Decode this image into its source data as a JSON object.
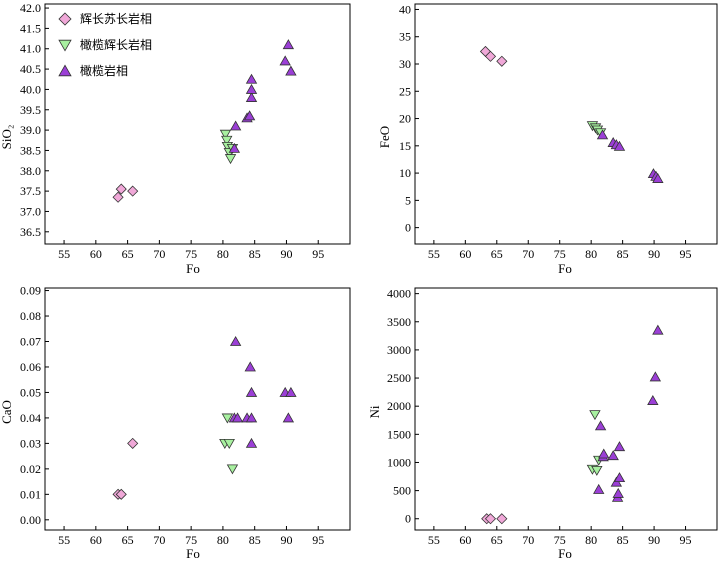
{
  "legend": [
    {
      "key": "gabbronorite",
      "label": "辉长苏长岩相",
      "marker": "diamond",
      "color": "#f0a8d8"
    },
    {
      "key": "olivine_gabbro",
      "label": "橄榄辉长岩相",
      "marker": "triangle-down",
      "color": "#a8f0a0"
    },
    {
      "key": "olivine_rock",
      "label": "橄榄岩相",
      "marker": "triangle-up",
      "color": "#9b3fd6"
    }
  ],
  "chart_data": [
    {
      "id": "sio2",
      "type": "scatter",
      "xlabel": "Fo",
      "ylabel": "SiO₂",
      "xlim": [
        52,
        100
      ],
      "ylim": [
        36.2,
        42.1
      ],
      "xticks": [
        55,
        60,
        65,
        70,
        75,
        80,
        85,
        90,
        95
      ],
      "yticks": [
        36.5,
        37.0,
        37.5,
        38.0,
        38.5,
        39.0,
        39.5,
        40.0,
        40.5,
        41.0,
        41.5,
        42.0
      ],
      "ytick_labels": [
        "36.5",
        "37.0",
        "37.5",
        "38.0",
        "38.5",
        "39.0",
        "39.5",
        "40.0",
        "40.5",
        "41.0",
        "41.5",
        "42.0"
      ],
      "series": [
        {
          "key": "gabbronorite",
          "points": [
            [
              63.5,
              37.35
            ],
            [
              64.0,
              37.55
            ],
            [
              65.8,
              37.5
            ]
          ]
        },
        {
          "key": "olivine_gabbro",
          "points": [
            [
              80.4,
              38.9
            ],
            [
              80.6,
              38.75
            ],
            [
              80.7,
              38.6
            ],
            [
              81.0,
              38.45
            ],
            [
              81.2,
              38.3
            ],
            [
              81.5,
              38.55
            ]
          ]
        },
        {
          "key": "olivine_rock",
          "points": [
            [
              81.8,
              38.55
            ],
            [
              82.0,
              39.1
            ],
            [
              83.8,
              39.3
            ],
            [
              84.2,
              39.35
            ],
            [
              84.5,
              39.8
            ],
            [
              84.5,
              40.0
            ],
            [
              84.5,
              40.25
            ],
            [
              89.8,
              40.7
            ],
            [
              90.3,
              41.1
            ],
            [
              90.7,
              40.45
            ]
          ]
        }
      ]
    },
    {
      "id": "feo",
      "type": "scatter",
      "xlabel": "Fo",
      "ylabel": "FeO",
      "xlim": [
        52,
        100
      ],
      "ylim": [
        -3,
        41
      ],
      "xticks": [
        55,
        60,
        65,
        70,
        75,
        80,
        85,
        90,
        95
      ],
      "yticks": [
        0,
        5,
        10,
        15,
        20,
        25,
        30,
        35,
        40
      ],
      "ytick_labels": [
        "0",
        "5",
        "10",
        "15",
        "20",
        "25",
        "30",
        "35",
        "40"
      ],
      "series": [
        {
          "key": "gabbronorite",
          "points": [
            [
              63.2,
              32.3
            ],
            [
              64.0,
              31.4
            ],
            [
              65.8,
              30.5
            ]
          ]
        },
        {
          "key": "olivine_gabbro",
          "points": [
            [
              80.2,
              18.7
            ],
            [
              80.7,
              18.3
            ],
            [
              81.0,
              17.9
            ],
            [
              81.5,
              17.4
            ]
          ]
        },
        {
          "key": "olivine_rock",
          "points": [
            [
              81.8,
              17.0
            ],
            [
              83.5,
              15.6
            ],
            [
              84.0,
              15.2
            ],
            [
              84.5,
              14.9
            ],
            [
              89.9,
              9.9
            ],
            [
              90.3,
              9.4
            ],
            [
              90.6,
              9.0
            ]
          ]
        }
      ]
    },
    {
      "id": "cao",
      "type": "scatter",
      "xlabel": "Fo",
      "ylabel": "CaO",
      "xlim": [
        52,
        100
      ],
      "ylim": [
        -0.004,
        0.091
      ],
      "xticks": [
        55,
        60,
        65,
        70,
        75,
        80,
        85,
        90,
        95
      ],
      "yticks": [
        0.0,
        0.01,
        0.02,
        0.03,
        0.04,
        0.05,
        0.06,
        0.07,
        0.08,
        0.09
      ],
      "ytick_labels": [
        "0.00",
        "0.01",
        "0.02",
        "0.03",
        "0.04",
        "0.05",
        "0.06",
        "0.07",
        "0.08",
        "0.09"
      ],
      "series": [
        {
          "key": "gabbronorite",
          "points": [
            [
              63.5,
              0.01
            ],
            [
              64.0,
              0.01
            ],
            [
              65.8,
              0.03
            ]
          ]
        },
        {
          "key": "olivine_gabbro",
          "points": [
            [
              80.3,
              0.03
            ],
            [
              80.7,
              0.04
            ],
            [
              81.0,
              0.03
            ],
            [
              81.5,
              0.02
            ]
          ]
        },
        {
          "key": "olivine_rock",
          "points": [
            [
              81.8,
              0.04
            ],
            [
              82.0,
              0.07
            ],
            [
              82.3,
              0.04
            ],
            [
              83.8,
              0.04
            ],
            [
              84.3,
              0.06
            ],
            [
              84.5,
              0.05
            ],
            [
              84.5,
              0.04
            ],
            [
              84.5,
              0.03
            ],
            [
              89.8,
              0.05
            ],
            [
              90.3,
              0.04
            ],
            [
              90.7,
              0.05
            ]
          ]
        }
      ]
    },
    {
      "id": "ni",
      "type": "scatter",
      "xlabel": "Fo",
      "ylabel": "Ni",
      "xlim": [
        52,
        100
      ],
      "ylim": [
        -200,
        4100
      ],
      "xticks": [
        55,
        60,
        65,
        70,
        75,
        80,
        85,
        90,
        95
      ],
      "yticks": [
        0,
        500,
        1000,
        1500,
        2000,
        2500,
        3000,
        3500,
        4000
      ],
      "ytick_labels": [
        "0",
        "500",
        "1000",
        "1500",
        "2000",
        "2500",
        "3000",
        "3500",
        "4000"
      ],
      "series": [
        {
          "key": "gabbronorite",
          "points": [
            [
              63.4,
              0
            ],
            [
              64.0,
              0
            ],
            [
              65.8,
              0
            ]
          ]
        },
        {
          "key": "olivine_gabbro",
          "points": [
            [
              80.2,
              880
            ],
            [
              80.6,
              1850
            ],
            [
              80.9,
              860
            ],
            [
              81.2,
              1040
            ]
          ]
        },
        {
          "key": "olivine_rock",
          "points": [
            [
              81.2,
              520
            ],
            [
              81.5,
              1650
            ],
            [
              81.9,
              1100
            ],
            [
              82.0,
              1150
            ],
            [
              83.5,
              1120
            ],
            [
              84.0,
              650
            ],
            [
              84.2,
              380
            ],
            [
              84.3,
              450
            ],
            [
              84.5,
              1280
            ],
            [
              84.5,
              730
            ],
            [
              89.8,
              2100
            ],
            [
              90.2,
              2520
            ],
            [
              90.6,
              3350
            ]
          ]
        }
      ]
    }
  ]
}
